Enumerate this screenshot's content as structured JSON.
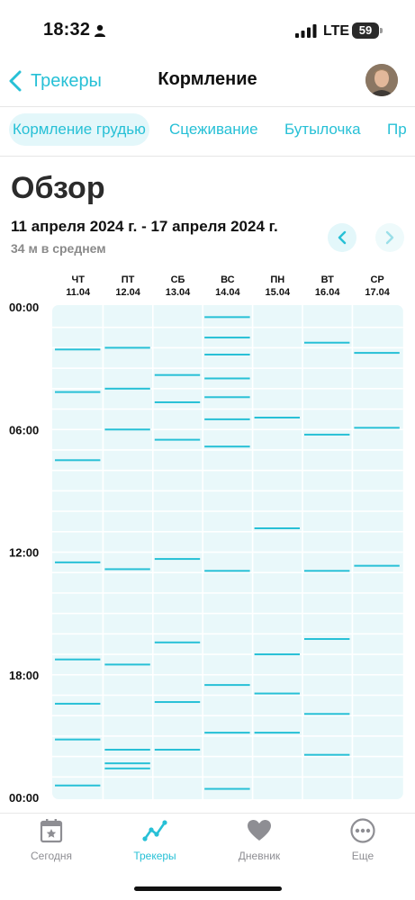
{
  "status_bar": {
    "time": "18:32",
    "network": "LTE",
    "battery": "59"
  },
  "nav": {
    "back_label": "Трекеры",
    "title": "Кормление"
  },
  "tabs": [
    {
      "label": "Кормление грудью",
      "active": true
    },
    {
      "label": "Сцеживание",
      "active": false
    },
    {
      "label": "Бутылочка",
      "active": false
    },
    {
      "label": "Пр",
      "active": false
    }
  ],
  "overview": {
    "heading": "Обзор",
    "date_range": "11 апреля 2024 г. - 17 апреля 2024 г.",
    "average": "34 м в среднем"
  },
  "chart_data": {
    "type": "scatter",
    "accent": "#27c0d6",
    "cell_color": "#e9f8fa",
    "y_ticks": [
      "00:00",
      "06:00",
      "12:00",
      "18:00",
      "00:00"
    ],
    "y_range_hours": [
      0,
      24
    ],
    "days": [
      {
        "weekday": "ЧТ",
        "date": "11.04",
        "events": [
          "02:05",
          "04:10",
          "07:30",
          "12:30",
          "17:15",
          "19:25",
          "21:10",
          "23:25"
        ]
      },
      {
        "weekday": "ПТ",
        "date": "12.04",
        "events": [
          "02:00",
          "04:00",
          "06:00",
          "12:50",
          "17:30",
          "21:40",
          "22:20",
          "22:35"
        ]
      },
      {
        "weekday": "СБ",
        "date": "13.04",
        "events": [
          "03:20",
          "04:40",
          "06:30",
          "12:20",
          "16:25",
          "19:20",
          "21:40"
        ]
      },
      {
        "weekday": "ВС",
        "date": "14.04",
        "events": [
          "00:30",
          "01:30",
          "02:20",
          "03:30",
          "04:25",
          "05:30",
          "06:50",
          "12:55",
          "18:30",
          "20:50",
          "23:35"
        ]
      },
      {
        "weekday": "ПН",
        "date": "15.04",
        "events": [
          "05:25",
          "10:50",
          "17:00",
          "18:55",
          "20:50"
        ]
      },
      {
        "weekday": "ВТ",
        "date": "16.04",
        "events": [
          "01:45",
          "06:15",
          "12:55",
          "16:15",
          "19:55",
          "21:55"
        ]
      },
      {
        "weekday": "СР",
        "date": "17.04",
        "events": [
          "02:15",
          "05:55",
          "12:40"
        ]
      }
    ]
  },
  "tab_bar": [
    {
      "label": "Сегодня",
      "icon": "calendar-star-icon",
      "active": false
    },
    {
      "label": "Трекеры",
      "icon": "trend-graph-icon",
      "active": true
    },
    {
      "label": "Дневник",
      "icon": "heart-icon",
      "active": false
    },
    {
      "label": "Еще",
      "icon": "more-dots-icon",
      "active": false
    }
  ]
}
